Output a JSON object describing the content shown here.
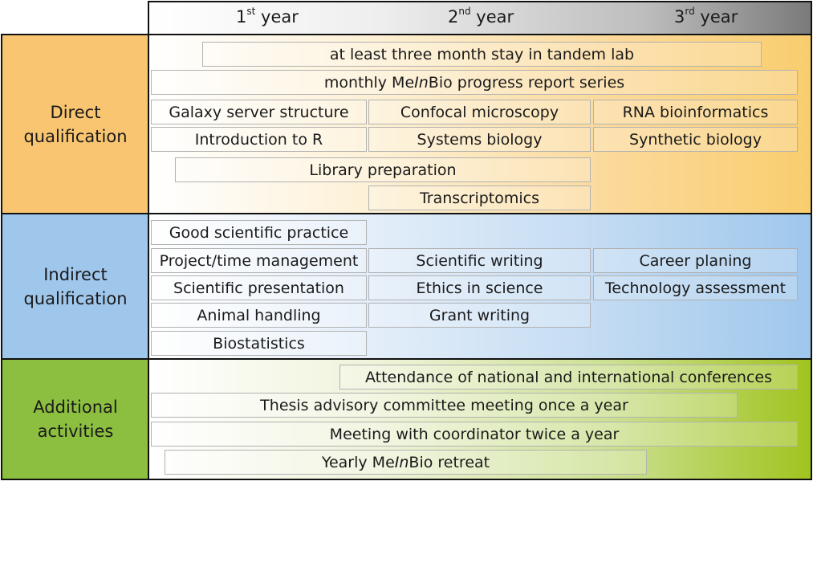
{
  "header": {
    "years": [
      {
        "num": "1",
        "sup": "st",
        "word": "year"
      },
      {
        "num": "2",
        "sup": "nd",
        "word": "year"
      },
      {
        "num": "3",
        "sup": "rd",
        "word": "year"
      }
    ]
  },
  "colors": {
    "direct": "#f9c570",
    "indirect": "#9fc7ec",
    "additional": "#8cbf3f",
    "border": "#111111",
    "box_border": "#b2b2b2"
  },
  "sections": {
    "direct": {
      "label_line1": "Direct",
      "label_line2": "qualification",
      "items": {
        "tandem_stay": "at least three month stay in tandem lab",
        "progress_report_pre": "monthly Me",
        "progress_report_it": "In",
        "progress_report_post": "Bio progress report series",
        "galaxy": "Galaxy server structure",
        "confocal": "Confocal microscopy",
        "rna_bioinf": "RNA bioinformatics",
        "intro_r": "Introduction to R",
        "systems_bio": "Systems biology",
        "synthetic_bio": "Synthetic biology",
        "library_prep": "Library preparation",
        "transcriptomics": "Transcriptomics"
      }
    },
    "indirect": {
      "label_line1": "Indirect",
      "label_line2": "qualification",
      "items": {
        "good_practice": "Good scientific practice",
        "project_mgmt": "Project/time management",
        "sci_writing": "Scientific writing",
        "career": "Career planing",
        "sci_presentation": "Scientific presentation",
        "ethics": "Ethics in science",
        "tech_assessment": "Technology assessment",
        "animal": "Animal handling",
        "grant": "Grant writing",
        "biostat": "Biostatistics"
      }
    },
    "additional": {
      "label_line1": "Additional",
      "label_line2": "activities",
      "items": {
        "conferences": "Attendance of national and international conferences",
        "thesis_committee": "Thesis advisory committee meeting once a year",
        "coordinator": "Meeting with coordinator twice a year",
        "retreat_pre": "Yearly Me",
        "retreat_it": "In",
        "retreat_post": "Bio retreat"
      }
    }
  }
}
